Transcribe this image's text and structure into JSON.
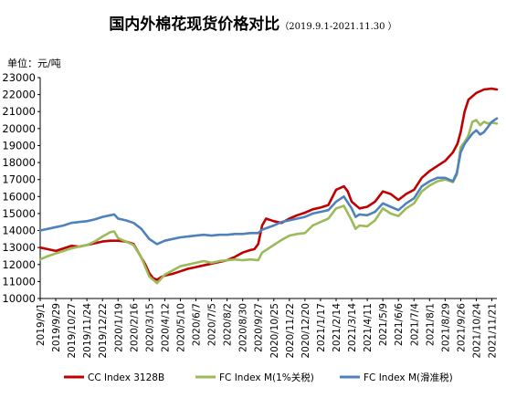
{
  "chart_data": {
    "type": "line",
    "title": "国内外棉花现货价格对比",
    "subtitle": "（2019.9.1-2021.11.30 ）",
    "unit_label": "单位：元/吨",
    "x_ticks": [
      "2019/9/1",
      "2019/9/29",
      "2019/10/27",
      "2019/11/24",
      "2019/12/22",
      "2020/1/19",
      "2020/2/16",
      "2020/3/15",
      "2020/4/12",
      "2020/5/10",
      "2020/6/7",
      "2020/7/5",
      "2020/8/2",
      "2020/8/30",
      "2020/9/27",
      "2020/10/25",
      "2020/11/22",
      "2020/12/20",
      "2021/1/17",
      "2021/2/14",
      "2021/3/14",
      "2021/4/11",
      "2021/5/9",
      "2021/6/6",
      "2021/7/4",
      "2021/8/1",
      "2021/8/29",
      "2021/9/26",
      "2021/10/24",
      "2021/11/21"
    ],
    "x_range": [
      "2019/9/1",
      "2021/11/30"
    ],
    "ylim": [
      10000,
      23000
    ],
    "y_ticks": [
      "10000",
      "11000",
      "12000",
      "13000",
      "14000",
      "15000",
      "16000",
      "17000",
      "18000",
      "19000",
      "20000",
      "21000",
      "22000",
      "23000"
    ],
    "grid": false,
    "legend_position": "bottom",
    "series": [
      {
        "name": "CC Index 3128B",
        "color": "#c00000",
        "points": [
          [
            "2019/9/1",
            13000
          ],
          [
            "2019/9/15",
            12900
          ],
          [
            "2019/9/29",
            12800
          ],
          [
            "2019/10/13",
            12950
          ],
          [
            "2019/10/27",
            13100
          ],
          [
            "2019/11/10",
            13050
          ],
          [
            "2019/11/24",
            13150
          ],
          [
            "2019/12/8",
            13250
          ],
          [
            "2019/12/22",
            13350
          ],
          [
            "2020/1/5",
            13400
          ],
          [
            "2020/1/19",
            13400
          ],
          [
            "2020/2/2",
            13350
          ],
          [
            "2020/2/16",
            13200
          ],
          [
            "2020/3/1",
            12400
          ],
          [
            "2020/3/8",
            12000
          ],
          [
            "2020/3/15",
            11500
          ],
          [
            "2020/3/22",
            11200
          ],
          [
            "2020/3/29",
            11100
          ],
          [
            "2020/4/5",
            11250
          ],
          [
            "2020/4/12",
            11350
          ],
          [
            "2020/4/26",
            11450
          ],
          [
            "2020/5/10",
            11600
          ],
          [
            "2020/5/24",
            11750
          ],
          [
            "2020/6/7",
            11850
          ],
          [
            "2020/6/21",
            11950
          ],
          [
            "2020/7/5",
            12050
          ],
          [
            "2020/7/19",
            12150
          ],
          [
            "2020/8/2",
            12250
          ],
          [
            "2020/8/16",
            12450
          ],
          [
            "2020/8/30",
            12700
          ],
          [
            "2020/9/13",
            12850
          ],
          [
            "2020/9/20",
            12900
          ],
          [
            "2020/9/27",
            13200
          ],
          [
            "2020/10/4",
            14300
          ],
          [
            "2020/10/11",
            14700
          ],
          [
            "2020/10/25",
            14550
          ],
          [
            "2020/11/8",
            14450
          ],
          [
            "2020/11/22",
            14700
          ],
          [
            "2020/12/6",
            14900
          ],
          [
            "2020/12/20",
            15050
          ],
          [
            "2021/1/3",
            15250
          ],
          [
            "2021/1/17",
            15350
          ],
          [
            "2021/1/31",
            15500
          ],
          [
            "2021/2/14",
            16400
          ],
          [
            "2021/2/28",
            16600
          ],
          [
            "2021/3/7",
            16300
          ],
          [
            "2021/3/14",
            15700
          ],
          [
            "2021/3/28",
            15300
          ],
          [
            "2021/4/11",
            15400
          ],
          [
            "2021/4/25",
            15700
          ],
          [
            "2021/5/9",
            16300
          ],
          [
            "2021/5/23",
            16150
          ],
          [
            "2021/6/6",
            15800
          ],
          [
            "2021/6/20",
            16150
          ],
          [
            "2021/7/4",
            16400
          ],
          [
            "2021/7/18",
            17100
          ],
          [
            "2021/8/1",
            17500
          ],
          [
            "2021/8/15",
            17800
          ],
          [
            "2021/8/29",
            18100
          ],
          [
            "2021/9/12",
            18600
          ],
          [
            "2021/9/20",
            19100
          ],
          [
            "2021/9/26",
            19800
          ],
          [
            "2021/10/3",
            21000
          ],
          [
            "2021/10/10",
            21700
          ],
          [
            "2021/10/24",
            22100
          ],
          [
            "2021/11/7",
            22300
          ],
          [
            "2021/11/21",
            22350
          ],
          [
            "2021/11/30",
            22300
          ]
        ]
      },
      {
        "name": "FC Index M(1%关税)",
        "color": "#9bbb59",
        "points": [
          [
            "2019/9/1",
            12300
          ],
          [
            "2019/9/15",
            12500
          ],
          [
            "2019/9/29",
            12650
          ],
          [
            "2019/10/13",
            12800
          ],
          [
            "2019/10/27",
            12950
          ],
          [
            "2019/11/10",
            13050
          ],
          [
            "2019/11/24",
            13150
          ],
          [
            "2019/12/8",
            13350
          ],
          [
            "2019/12/22",
            13650
          ],
          [
            "2020/1/5",
            13900
          ],
          [
            "2020/1/12",
            13950
          ],
          [
            "2020/1/19",
            13550
          ],
          [
            "2020/2/2",
            13350
          ],
          [
            "2020/2/16",
            13150
          ],
          [
            "2020/3/1",
            12400
          ],
          [
            "2020/3/15",
            11300
          ],
          [
            "2020/3/29",
            10900
          ],
          [
            "2020/4/12",
            11400
          ],
          [
            "2020/4/26",
            11650
          ],
          [
            "2020/5/10",
            11900
          ],
          [
            "2020/5/24",
            12000
          ],
          [
            "2020/6/7",
            12100
          ],
          [
            "2020/6/21",
            12200
          ],
          [
            "2020/7/5",
            12100
          ],
          [
            "2020/7/19",
            12200
          ],
          [
            "2020/8/2",
            12250
          ],
          [
            "2020/8/16",
            12300
          ],
          [
            "2020/8/30",
            12250
          ],
          [
            "2020/9/13",
            12300
          ],
          [
            "2020/9/27",
            12250
          ],
          [
            "2020/10/4",
            12700
          ],
          [
            "2020/10/25",
            13150
          ],
          [
            "2020/11/8",
            13450
          ],
          [
            "2020/11/22",
            13700
          ],
          [
            "2020/12/6",
            13800
          ],
          [
            "2020/12/20",
            13850
          ],
          [
            "2021/1/3",
            14300
          ],
          [
            "2021/1/17",
            14500
          ],
          [
            "2021/1/31",
            14700
          ],
          [
            "2021/2/14",
            15300
          ],
          [
            "2021/2/28",
            15450
          ],
          [
            "2021/3/14",
            14600
          ],
          [
            "2021/3/21",
            14100
          ],
          [
            "2021/3/28",
            14300
          ],
          [
            "2021/4/11",
            14250
          ],
          [
            "2021/4/25",
            14600
          ],
          [
            "2021/5/9",
            15300
          ],
          [
            "2021/5/23",
            15000
          ],
          [
            "2021/6/6",
            14850
          ],
          [
            "2021/6/20",
            15300
          ],
          [
            "2021/7/4",
            15600
          ],
          [
            "2021/7/18",
            16300
          ],
          [
            "2021/8/1",
            16650
          ],
          [
            "2021/8/15",
            16900
          ],
          [
            "2021/8/29",
            17000
          ],
          [
            "2021/9/12",
            16850
          ],
          [
            "2021/9/19",
            17300
          ],
          [
            "2021/9/26",
            18900
          ],
          [
            "2021/10/3",
            19200
          ],
          [
            "2021/10/10",
            19600
          ],
          [
            "2021/10/17",
            20400
          ],
          [
            "2021/10/24",
            20500
          ],
          [
            "2021/10/31",
            20200
          ],
          [
            "2021/11/7",
            20400
          ],
          [
            "2021/11/14",
            20300
          ],
          [
            "2021/11/21",
            20350
          ],
          [
            "2021/11/30",
            20300
          ]
        ]
      },
      {
        "name": "FC Index M(滑准税)",
        "color": "#4f81bd",
        "points": [
          [
            "2019/9/1",
            14000
          ],
          [
            "2019/9/15",
            14100
          ],
          [
            "2019/9/29",
            14200
          ],
          [
            "2019/10/13",
            14300
          ],
          [
            "2019/10/27",
            14450
          ],
          [
            "2019/11/10",
            14500
          ],
          [
            "2019/11/24",
            14550
          ],
          [
            "2019/12/8",
            14650
          ],
          [
            "2019/12/22",
            14800
          ],
          [
            "2020/1/5",
            14900
          ],
          [
            "2020/1/12",
            14950
          ],
          [
            "2020/1/19",
            14700
          ],
          [
            "2020/2/2",
            14600
          ],
          [
            "2020/2/16",
            14450
          ],
          [
            "2020/3/1",
            14100
          ],
          [
            "2020/3/15",
            13500
          ],
          [
            "2020/3/29",
            13200
          ],
          [
            "2020/4/12",
            13400
          ],
          [
            "2020/4/26",
            13500
          ],
          [
            "2020/5/10",
            13600
          ],
          [
            "2020/5/24",
            13650
          ],
          [
            "2020/6/7",
            13700
          ],
          [
            "2020/6/21",
            13750
          ],
          [
            "2020/7/5",
            13700
          ],
          [
            "2020/7/19",
            13750
          ],
          [
            "2020/8/2",
            13750
          ],
          [
            "2020/8/16",
            13800
          ],
          [
            "2020/8/30",
            13800
          ],
          [
            "2020/9/13",
            13850
          ],
          [
            "2020/9/27",
            13850
          ],
          [
            "2020/10/4",
            14050
          ],
          [
            "2020/10/25",
            14300
          ],
          [
            "2020/11/8",
            14500
          ],
          [
            "2020/11/22",
            14600
          ],
          [
            "2020/12/6",
            14700
          ],
          [
            "2020/12/20",
            14800
          ],
          [
            "2021/1/3",
            15000
          ],
          [
            "2021/1/17",
            15100
          ],
          [
            "2021/1/31",
            15200
          ],
          [
            "2021/2/14",
            15700
          ],
          [
            "2021/2/28",
            16000
          ],
          [
            "2021/3/14",
            15300
          ],
          [
            "2021/3/21",
            14800
          ],
          [
            "2021/3/28",
            14950
          ],
          [
            "2021/4/11",
            14900
          ],
          [
            "2021/4/25",
            15100
          ],
          [
            "2021/5/9",
            15600
          ],
          [
            "2021/5/23",
            15400
          ],
          [
            "2021/6/6",
            15200
          ],
          [
            "2021/6/20",
            15600
          ],
          [
            "2021/7/4",
            15900
          ],
          [
            "2021/7/18",
            16600
          ],
          [
            "2021/8/1",
            16900
          ],
          [
            "2021/8/15",
            17100
          ],
          [
            "2021/8/29",
            17100
          ],
          [
            "2021/9/12",
            16900
          ],
          [
            "2021/9/19",
            17400
          ],
          [
            "2021/9/26",
            18600
          ],
          [
            "2021/10/3",
            19100
          ],
          [
            "2021/10/10",
            19400
          ],
          [
            "2021/10/17",
            19700
          ],
          [
            "2021/10/24",
            19900
          ],
          [
            "2021/10/31",
            19650
          ],
          [
            "2021/11/7",
            19800
          ],
          [
            "2021/11/14",
            20100
          ],
          [
            "2021/11/21",
            20400
          ],
          [
            "2021/11/30",
            20600
          ]
        ]
      }
    ]
  }
}
